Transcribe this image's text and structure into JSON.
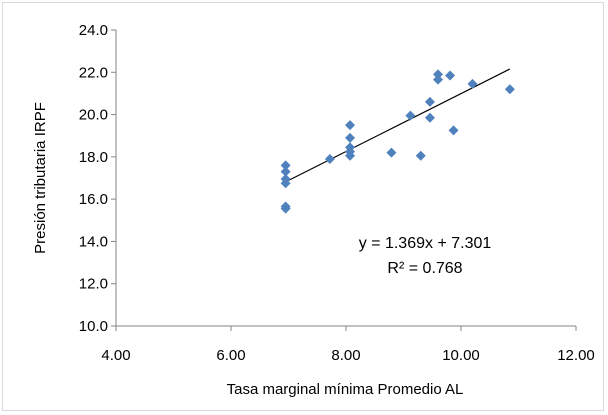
{
  "chart_data": {
    "type": "scatter",
    "xlabel": "Tasa marginal mínima Promedio AL",
    "ylabel": "Presión tributaria IRPF",
    "xlim": [
      4.0,
      12.0
    ],
    "ylim": [
      10.0,
      24.0
    ],
    "x_ticks": [
      4.0,
      6.0,
      8.0,
      10.0,
      12.0
    ],
    "x_tick_labels": [
      "4.00",
      "6.00",
      "8.00",
      "10.00",
      "12.00"
    ],
    "y_ticks": [
      10.0,
      12.0,
      14.0,
      16.0,
      18.0,
      20.0,
      22.0,
      24.0
    ],
    "y_tick_labels": [
      "10.0",
      "12.0",
      "14.0",
      "16.0",
      "18.0",
      "20.0",
      "22.0",
      "24.0"
    ],
    "grid": false,
    "marker": "diamond",
    "marker_color": "#4f81bd",
    "trendline_color": "#000000",
    "points": [
      {
        "x": 6.95,
        "y": 17.6
      },
      {
        "x": 6.95,
        "y": 17.3
      },
      {
        "x": 6.95,
        "y": 16.95
      },
      {
        "x": 6.95,
        "y": 16.75
      },
      {
        "x": 6.95,
        "y": 15.65
      },
      {
        "x": 6.95,
        "y": 15.55
      },
      {
        "x": 7.72,
        "y": 17.9
      },
      {
        "x": 8.07,
        "y": 19.5
      },
      {
        "x": 8.07,
        "y": 18.9
      },
      {
        "x": 8.07,
        "y": 18.45
      },
      {
        "x": 8.07,
        "y": 18.25
      },
      {
        "x": 8.07,
        "y": 18.05
      },
      {
        "x": 8.79,
        "y": 18.2
      },
      {
        "x": 9.12,
        "y": 19.95
      },
      {
        "x": 9.3,
        "y": 18.05
      },
      {
        "x": 9.46,
        "y": 20.6
      },
      {
        "x": 9.46,
        "y": 19.85
      },
      {
        "x": 9.6,
        "y": 21.9
      },
      {
        "x": 9.6,
        "y": 21.65
      },
      {
        "x": 9.81,
        "y": 21.85
      },
      {
        "x": 9.87,
        "y": 19.25
      },
      {
        "x": 10.2,
        "y": 21.45
      },
      {
        "x": 10.85,
        "y": 21.2
      }
    ],
    "trendline": {
      "slope": 1.369,
      "intercept": 7.301,
      "x_start": 6.95,
      "x_end": 10.85
    },
    "annotations": {
      "equation": "y = 1.369x + 7.301",
      "r_squared": "R² = 0.768"
    }
  }
}
